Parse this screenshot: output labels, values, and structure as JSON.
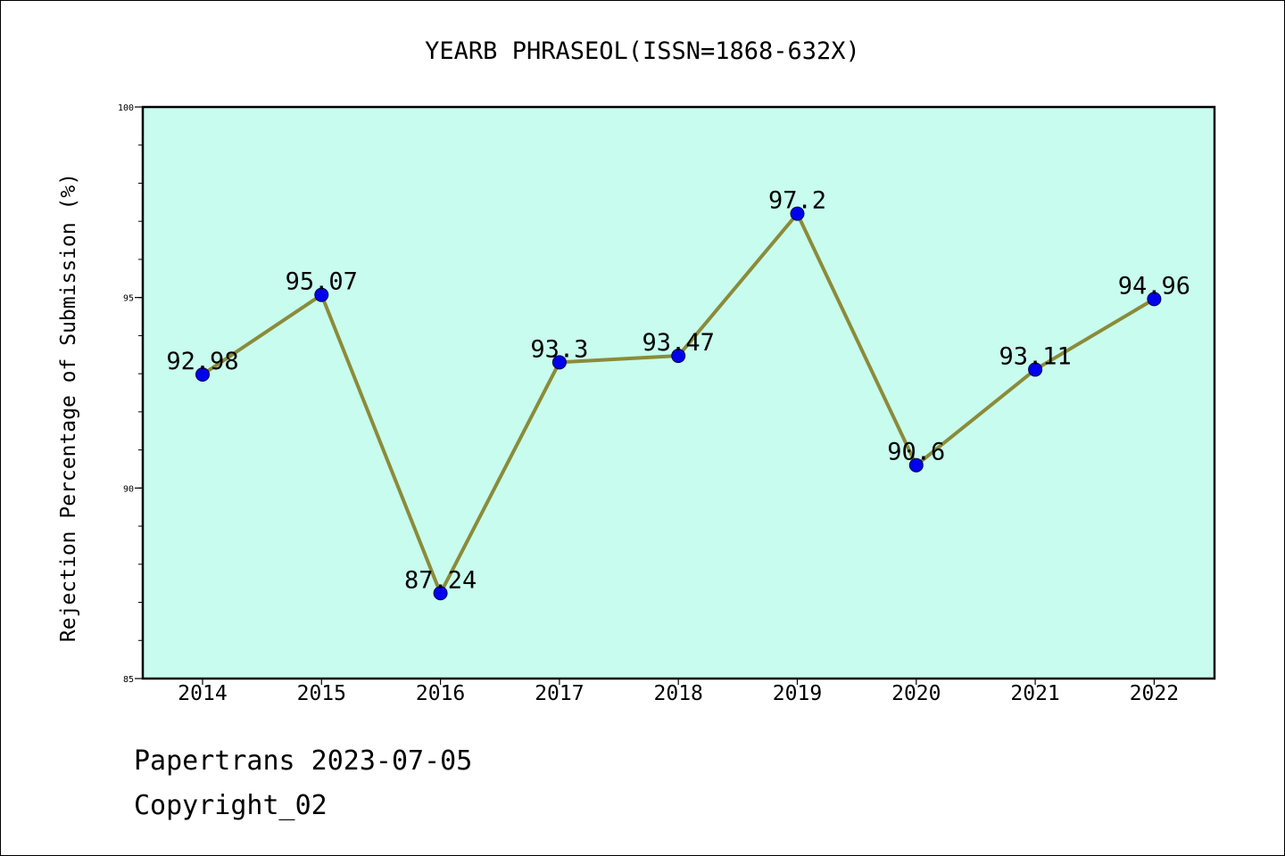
{
  "chart_data": {
    "type": "line",
    "title": "YEARB PHRASEOL(ISSN=1868-632X)",
    "ylabel": "Rejection Percentage of Submission (%)",
    "xlabel": "",
    "categories": [
      "2014",
      "2015",
      "2016",
      "2017",
      "2018",
      "2019",
      "2020",
      "2021",
      "2022"
    ],
    "values": [
      92.98,
      95.07,
      87.24,
      93.3,
      93.47,
      97.2,
      90.6,
      93.11,
      94.96
    ],
    "value_labels": [
      "92.98",
      "95.07",
      "87.24",
      "93.3",
      "93.47",
      "97.2",
      "90.6",
      "93.11",
      "94.96"
    ],
    "ylim": [
      85,
      100
    ],
    "y_ticks": [
      85,
      90,
      95,
      100
    ],
    "y_tick_labels": [
      "85",
      "90",
      "95",
      "100"
    ],
    "y_minor_step": 1,
    "grid": false,
    "legend": "none",
    "colors": {
      "plot_background": "#c8fcee",
      "line": "#8b8b3a",
      "marker": "#0000ee",
      "axis": "#000000"
    }
  },
  "footer": {
    "line1": "Papertrans 2023-07-05",
    "line2": "Copyright_02"
  }
}
